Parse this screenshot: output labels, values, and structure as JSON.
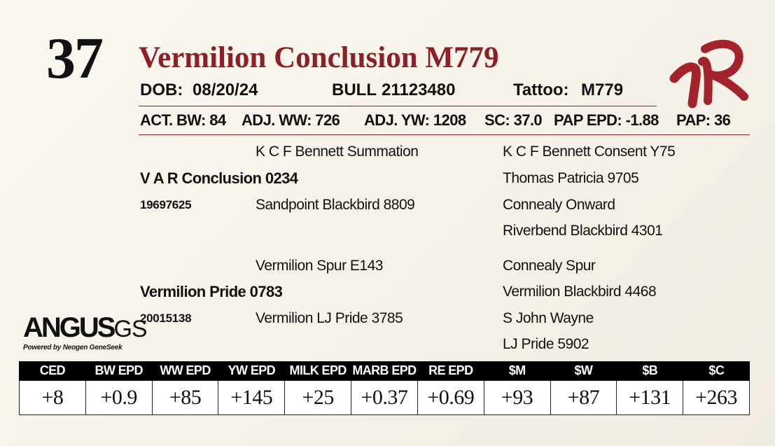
{
  "lot_number": "37",
  "animal_name": "Vermilion Conclusion M779",
  "logo_text": "VR",
  "info": {
    "dob_label": "DOB:",
    "dob": "08/20/24",
    "sex": "BULL",
    "registration": "21123480",
    "tattoo_label": "Tattoo:",
    "tattoo": "M779"
  },
  "measures": {
    "act_bw": "ACT. BW: 84",
    "adj_ww": "ADJ. WW: 726",
    "adj_yw": "ADJ. YW: 1208",
    "sc": "SC: 37.0",
    "pap_epd": "PAP EPD: -1.88",
    "pap": "PAP: 36"
  },
  "pedigree": {
    "sire": {
      "name": "V A R Conclusion 0234",
      "reg": "19697625",
      "sire": "K C F Bennett Summation",
      "dam": "Sandpoint Blackbird 8809",
      "sire_sire": "K C F Bennett Consent Y75",
      "sire_dam": "Thomas Patricia 9705",
      "dam_sire": "Connealy Onward",
      "dam_dam": "Riverbend Blackbird 4301"
    },
    "dam": {
      "name": "Vermilion Pride 0783",
      "reg": "20015138",
      "sire": "Vermilion Spur E143",
      "dam": "Vermilion LJ Pride 3785",
      "sire_sire": "Connealy Spur",
      "sire_dam": "Vermilion Blackbird 4468",
      "dam_sire": "S John Wayne",
      "dam_dam": "LJ Pride 5902"
    }
  },
  "brand": {
    "main": "ANGUS",
    "suffix": "GS",
    "tagline": "Powered by Neogen GeneSeek"
  },
  "epds": {
    "headers": [
      "CED",
      "BW EPD",
      "WW EPD",
      "YW EPD",
      "MILK EPD",
      "MARB EPD",
      "RE EPD",
      "$M",
      "$W",
      "$B",
      "$C"
    ],
    "values": [
      "+8",
      "+0.9",
      "+85",
      "+145",
      "+25",
      "+0.37",
      "+0.69",
      "+93",
      "+87",
      "+131",
      "+263"
    ]
  },
  "colors": {
    "accent": "#8c2026"
  }
}
